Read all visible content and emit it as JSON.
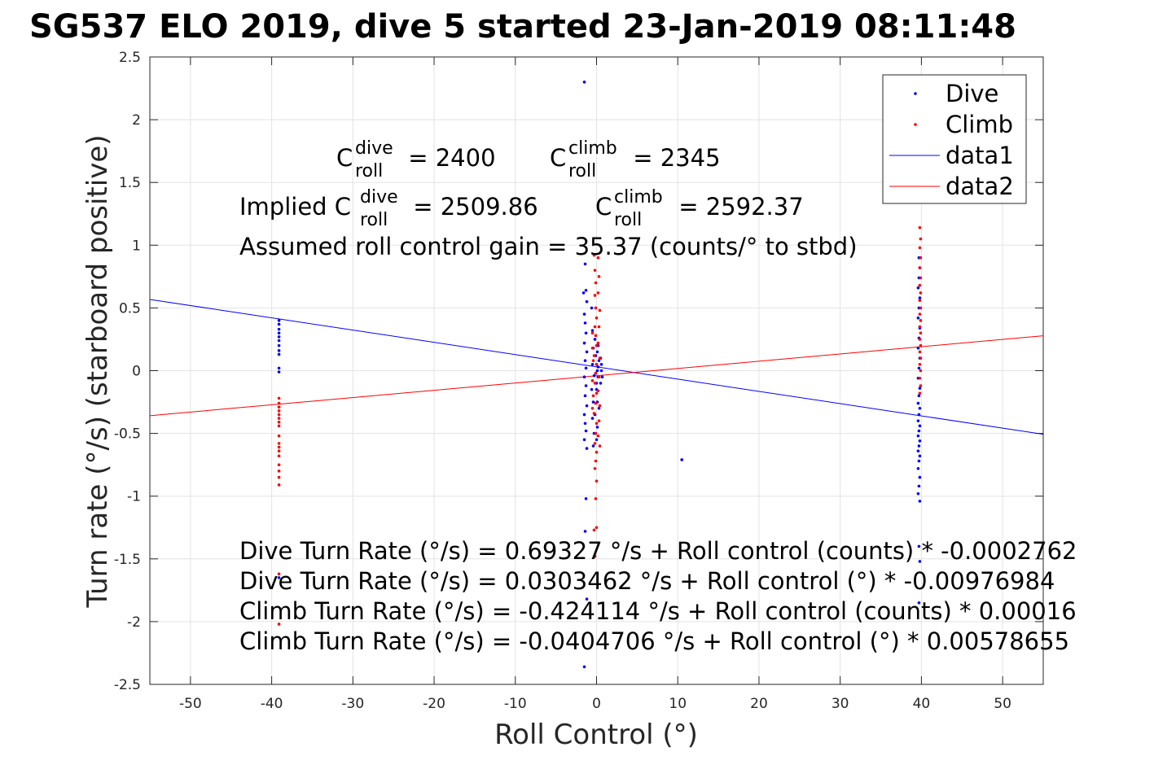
{
  "chart_data": {
    "type": "scatter",
    "title": "SG537 ELO 2019, dive 5 started 23-Jan-2019 08:11:48",
    "xlabel": "Roll Control (°)",
    "ylabel": "Turn rate (°/s) (starboard positive)",
    "xlim": [
      -55,
      55
    ],
    "ylim": [
      -2.5,
      2.5
    ],
    "xticks": [
      -50,
      -40,
      -30,
      -20,
      -10,
      0,
      10,
      20,
      30,
      40,
      50
    ],
    "yticks": [
      -2.5,
      -2,
      -1.5,
      -1,
      -0.5,
      0,
      0.5,
      1,
      1.5,
      2,
      2.5
    ],
    "grid": true,
    "legend_position": "top-right",
    "legend": [
      {
        "label": "Dive",
        "marker": "dot",
        "color": "#0000ff"
      },
      {
        "label": "Climb",
        "marker": "dot",
        "color": "#ff0000"
      },
      {
        "label": "data1",
        "marker": "line",
        "color": "#0000ff"
      },
      {
        "label": "data2",
        "marker": "line",
        "color": "#ff0000"
      }
    ],
    "series": [
      {
        "name": "Dive",
        "color": "#0000ff",
        "points": [
          [
            -39.1,
            0.4
          ],
          [
            -39.1,
            0.37
          ],
          [
            -39.1,
            0.33
          ],
          [
            -39.1,
            0.3
          ],
          [
            -39.1,
            0.27
          ],
          [
            -39.1,
            0.24
          ],
          [
            -39.1,
            0.2
          ],
          [
            -39.1,
            0.16
          ],
          [
            -39.1,
            0.13
          ],
          [
            -39.1,
            0.02
          ],
          [
            -39.1,
            -0.01
          ],
          [
            -39.1,
            -1.65
          ],
          [
            -1.5,
            2.3
          ],
          [
            -1.4,
            0.85
          ],
          [
            -1.3,
            0.64
          ],
          [
            -1.6,
            0.62
          ],
          [
            -1.2,
            0.55
          ],
          [
            -1.5,
            0.45
          ],
          [
            -1.4,
            0.38
          ],
          [
            -1.3,
            0.3
          ],
          [
            -1.5,
            0.22
          ],
          [
            -1.2,
            0.15
          ],
          [
            -1.4,
            0.08
          ],
          [
            -1.3,
            0.02
          ],
          [
            -1.5,
            -0.05
          ],
          [
            -1.3,
            -0.12
          ],
          [
            -1.4,
            -0.2
          ],
          [
            -1.2,
            -0.28
          ],
          [
            -1.5,
            -0.35
          ],
          [
            -1.4,
            -0.42
          ],
          [
            -1.3,
            -0.48
          ],
          [
            -1.5,
            -0.55
          ],
          [
            -1.2,
            -0.62
          ],
          [
            -1.3,
            -1.02
          ],
          [
            -1.4,
            -1.28
          ],
          [
            -1.2,
            -1.82
          ],
          [
            -1.5,
            -2.36
          ],
          [
            -0.6,
            0.5
          ],
          [
            -0.5,
            0.32
          ],
          [
            -0.4,
            0.18
          ],
          [
            -0.5,
            0.05
          ],
          [
            -0.3,
            -0.04
          ],
          [
            -0.6,
            -0.15
          ],
          [
            -0.4,
            -0.25
          ],
          [
            -0.5,
            -0.38
          ],
          [
            -0.3,
            -0.5
          ],
          [
            -0.4,
            -0.6
          ],
          [
            -0.2,
            0.25
          ],
          [
            -0.1,
            0.12
          ],
          [
            0.0,
            0.05
          ],
          [
            0.1,
            0.0
          ],
          [
            0.2,
            -0.05
          ],
          [
            0.3,
            0.08
          ],
          [
            0.0,
            -0.1
          ],
          [
            0.1,
            0.15
          ],
          [
            -0.1,
            -0.02
          ],
          [
            0.2,
            0.03
          ],
          [
            0.0,
            -0.15
          ],
          [
            0.1,
            -0.25
          ],
          [
            -0.2,
            -0.35
          ],
          [
            0.1,
            -0.45
          ],
          [
            0.0,
            -0.55
          ],
          [
            0.3,
            -0.3
          ],
          [
            0.2,
            0.2
          ],
          [
            0.5,
            0.1
          ],
          [
            0.6,
            0.0
          ],
          [
            0.7,
            -0.05
          ],
          [
            0.5,
            -0.1
          ],
          [
            0.6,
            0.05
          ],
          [
            10.5,
            -0.71
          ],
          [
            39.7,
            0.9
          ],
          [
            39.8,
            0.82
          ],
          [
            39.7,
            0.74
          ],
          [
            39.6,
            0.66
          ],
          [
            39.8,
            0.58
          ],
          [
            39.7,
            0.5
          ],
          [
            39.6,
            0.42
          ],
          [
            39.8,
            0.34
          ],
          [
            39.7,
            0.26
          ],
          [
            39.6,
            0.18
          ],
          [
            39.8,
            0.1
          ],
          [
            39.7,
            0.02
          ],
          [
            39.6,
            -0.06
          ],
          [
            39.8,
            -0.14
          ],
          [
            39.7,
            -0.2
          ],
          [
            39.6,
            -0.26
          ],
          [
            39.8,
            -0.3
          ],
          [
            39.7,
            -0.35
          ],
          [
            39.6,
            -0.4
          ],
          [
            39.8,
            -0.44
          ],
          [
            39.7,
            -0.48
          ],
          [
            39.6,
            -0.52
          ],
          [
            39.8,
            -0.56
          ],
          [
            39.7,
            -0.6
          ],
          [
            39.6,
            -0.64
          ],
          [
            39.8,
            -0.68
          ],
          [
            39.7,
            -0.72
          ],
          [
            39.6,
            -0.78
          ],
          [
            39.8,
            -0.85
          ],
          [
            39.7,
            -0.92
          ],
          [
            39.6,
            -0.98
          ],
          [
            39.8,
            -1.04
          ],
          [
            39.7,
            -1.4
          ],
          [
            39.8,
            -1.52
          ],
          [
            39.7,
            -1.85
          ]
        ]
      },
      {
        "name": "Climb",
        "color": "#ff0000",
        "points": [
          [
            -39.1,
            -0.22
          ],
          [
            -39.1,
            -0.26
          ],
          [
            -39.1,
            -0.29
          ],
          [
            -39.1,
            -0.32
          ],
          [
            -39.1,
            -0.35
          ],
          [
            -39.1,
            -0.38
          ],
          [
            -39.1,
            -0.41
          ],
          [
            -39.1,
            -0.44
          ],
          [
            -39.1,
            -0.52
          ],
          [
            -39.1,
            -0.58
          ],
          [
            -39.1,
            -0.61
          ],
          [
            -39.1,
            -0.64
          ],
          [
            -39.1,
            -0.68
          ],
          [
            -39.1,
            -0.75
          ],
          [
            -39.1,
            -0.8
          ],
          [
            -39.1,
            -0.85
          ],
          [
            -39.1,
            -0.91
          ],
          [
            -39.1,
            -1.62
          ],
          [
            -39.1,
            -2.02
          ],
          [
            -0.3,
            0.92
          ],
          [
            -0.2,
            0.8
          ],
          [
            -0.1,
            0.7
          ],
          [
            -0.2,
            0.6
          ],
          [
            -0.1,
            0.5
          ],
          [
            0.0,
            0.42
          ],
          [
            -0.2,
            0.35
          ],
          [
            -0.1,
            0.28
          ],
          [
            0.0,
            0.2
          ],
          [
            -0.3,
            0.12
          ],
          [
            0.0,
            0.05
          ],
          [
            -0.1,
            -0.02
          ],
          [
            -0.2,
            -0.1
          ],
          [
            0.0,
            -0.18
          ],
          [
            -0.1,
            -0.26
          ],
          [
            -0.3,
            -0.34
          ],
          [
            0.0,
            -0.42
          ],
          [
            -0.1,
            -0.5
          ],
          [
            -0.2,
            -0.58
          ],
          [
            0.0,
            -0.65
          ],
          [
            -0.1,
            -0.72
          ],
          [
            -0.2,
            -0.78
          ],
          [
            0.0,
            -0.88
          ],
          [
            -0.1,
            -1.02
          ],
          [
            -0.3,
            -1.27
          ],
          [
            0.0,
            -1.25
          ],
          [
            -0.2,
            -1.48
          ],
          [
            0.2,
            0.9
          ],
          [
            0.3,
            0.75
          ],
          [
            0.2,
            0.62
          ],
          [
            0.4,
            0.48
          ],
          [
            0.3,
            0.35
          ],
          [
            0.2,
            0.22
          ],
          [
            0.4,
            0.1
          ],
          [
            0.3,
            -0.05
          ],
          [
            0.2,
            -0.16
          ],
          [
            0.4,
            -0.28
          ],
          [
            0.3,
            -0.4
          ],
          [
            0.2,
            -0.52
          ],
          [
            0.4,
            -0.6
          ],
          [
            -0.5,
            0.3
          ],
          [
            -0.5,
            0.18
          ],
          [
            -0.4,
            0.08
          ],
          [
            -0.5,
            -0.08
          ],
          [
            -0.4,
            -0.2
          ],
          [
            -0.5,
            -0.3
          ],
          [
            39.8,
            1.14
          ],
          [
            39.9,
            1.05
          ],
          [
            39.8,
            0.98
          ],
          [
            39.9,
            0.9
          ],
          [
            39.8,
            0.82
          ],
          [
            39.9,
            0.74
          ],
          [
            39.8,
            0.68
          ],
          [
            39.9,
            0.62
          ],
          [
            39.8,
            0.56
          ],
          [
            39.9,
            0.5
          ],
          [
            39.8,
            0.45
          ],
          [
            39.9,
            0.4
          ],
          [
            39.8,
            0.35
          ],
          [
            39.9,
            0.3
          ],
          [
            39.8,
            0.25
          ],
          [
            39.9,
            0.2
          ],
          [
            39.8,
            0.15
          ],
          [
            39.9,
            0.1
          ],
          [
            39.8,
            0.05
          ],
          [
            39.9,
            0.0
          ],
          [
            39.8,
            -0.06
          ],
          [
            39.9,
            -0.12
          ],
          [
            39.8,
            -0.18
          ]
        ]
      },
      {
        "name": "data1",
        "type": "line",
        "color": "#0000ff",
        "x": [
          -55,
          55
        ],
        "y": [
          0.567646,
          -0.506837
        ]
      },
      {
        "name": "data2",
        "type": "line",
        "color": "#ff0000",
        "x": [
          -55,
          55
        ],
        "y": [
          -0.358731,
          0.27779
        ]
      }
    ],
    "annotations": {
      "c_dive": {
        "base": "C",
        "sup": "dive",
        "sub": "roll",
        "value": " = 2400"
      },
      "c_climb": {
        "base": "C",
        "sup": "climb",
        "sub": "roll",
        "value": " = 2345"
      },
      "implied_dive": {
        "prefix": "Implied C",
        "sup": "dive",
        "sub": "roll",
        "value": " = 2509.86"
      },
      "implied_climb": {
        "base": "C",
        "sup": "climb",
        "sub": "roll",
        "value": " = 2592.37"
      },
      "gain": "Assumed roll control gain = 35.37 (counts/° to stbd)",
      "eq1": "Dive Turn Rate (°/s) = 0.69327 °/s + Roll control (counts) * -0.0002762",
      "eq2": "Dive Turn Rate (°/s) = 0.0303462 °/s + Roll control (°) * -0.00976984",
      "eq3": "Climb Turn Rate (°/s) = -0.424114 °/s + Roll control (counts) * 0.00016",
      "eq4": "Climb Turn Rate (°/s) = -0.0404706 °/s + Roll control (°) * 0.00578655"
    }
  }
}
